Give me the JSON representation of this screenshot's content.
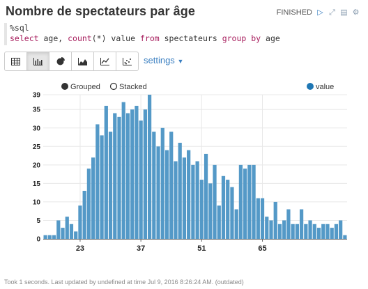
{
  "title": "Nombre de spectateurs par âge",
  "status": {
    "label": "FINISHED"
  },
  "code": {
    "line1": "%sql",
    "line2_parts": [
      "select",
      " age, ",
      "count",
      "(*) value ",
      "from",
      " spectateurs ",
      "group",
      " ",
      "by",
      " age"
    ]
  },
  "toolbar": {
    "buttons": [
      "table-icon",
      "bar-chart-icon",
      "pie-chart-icon",
      "area-chart-icon",
      "line-chart-icon",
      "scatter-chart-icon"
    ],
    "active": "bar-chart-icon",
    "settings_label": "settings"
  },
  "legend": {
    "grouped": "Grouped",
    "stacked": "Stacked",
    "series": "value"
  },
  "colors": {
    "bar": "#5499c7",
    "accent": "#3a7fc1",
    "legend_series": "#1f77b4"
  },
  "chart_data": {
    "type": "bar",
    "x_start": 15,
    "x_end": 68,
    "xticks": [
      23,
      37,
      51,
      65
    ],
    "yticks": [
      0,
      5,
      10,
      15,
      20,
      25,
      30,
      35,
      39
    ],
    "ylim": [
      0,
      39
    ],
    "grid": true,
    "series": [
      {
        "name": "value",
        "values": [
          1,
          1,
          1,
          5,
          3,
          6,
          4,
          2,
          9,
          13,
          19,
          22,
          31,
          28,
          36,
          29,
          34,
          33,
          37,
          34,
          35,
          36,
          32,
          35,
          39,
          29,
          25,
          30,
          24,
          29,
          21,
          26,
          22,
          24,
          20,
          21,
          16,
          23,
          15,
          20,
          9,
          17,
          16,
          14,
          8,
          20,
          19,
          20,
          20,
          11,
          11,
          6,
          5,
          10,
          4,
          5,
          8,
          4,
          4,
          8,
          4,
          5,
          4,
          3,
          4,
          4,
          3,
          4,
          5,
          1
        ]
      }
    ]
  },
  "footer": "Took 1 seconds. Last updated by undefined at time Jul 9, 2016 8:26:24 AM. (outdated)"
}
